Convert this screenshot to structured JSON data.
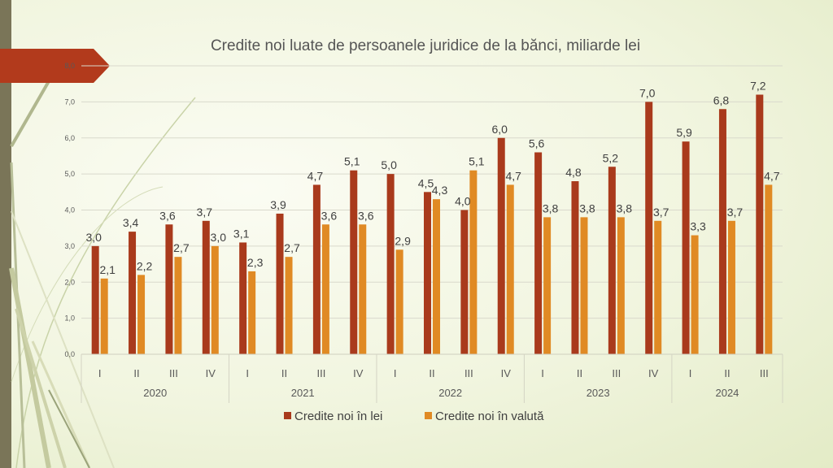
{
  "chart_data": {
    "type": "bar",
    "title": "Credite noi luate de persoanele juridice de la bănci, miliarde lei",
    "ylim": [
      0,
      8
    ],
    "yticks": [
      "0,0",
      "1,0",
      "2,0",
      "3,0",
      "4,0",
      "5,0",
      "6,0",
      "7,0",
      "8,0"
    ],
    "years": [
      "2020",
      "2021",
      "2022",
      "2023",
      "2024"
    ],
    "categories": [
      "I",
      "II",
      "III",
      "IV",
      "I",
      "II",
      "III",
      "IV",
      "I",
      "II",
      "III",
      "IV",
      "I",
      "II",
      "III",
      "IV",
      "I",
      "II",
      "III"
    ],
    "year_spans": [
      4,
      4,
      4,
      4,
      3
    ],
    "series": [
      {
        "name": "Credite noi în lei",
        "color": "#a93a1c",
        "values": [
          3.0,
          3.4,
          3.6,
          3.7,
          3.1,
          3.9,
          4.7,
          5.1,
          5.0,
          4.5,
          4.0,
          6.0,
          5.6,
          4.8,
          5.2,
          7.0,
          5.9,
          6.8,
          7.2
        ],
        "labels": [
          "3,0",
          "3,4",
          "3,6",
          "3,7",
          "3,1",
          "3,9",
          "4,7",
          "5,1",
          "5,0",
          "4,5",
          "4,0",
          "6,0",
          "5,6",
          "4,8",
          "5,2",
          "7,0",
          "5,9",
          "6,8",
          "7,2"
        ]
      },
      {
        "name": "Credite noi în valută",
        "color": "#e08a24",
        "values": [
          2.1,
          2.2,
          2.7,
          3.0,
          2.3,
          2.7,
          3.6,
          3.6,
          2.9,
          4.3,
          5.1,
          4.7,
          3.8,
          3.8,
          3.8,
          3.7,
          3.3,
          3.7,
          4.7
        ],
        "labels": [
          "2,1",
          "2,2",
          "2,7",
          "3,0",
          "2,3",
          "2,7",
          "3,6",
          "3,6",
          "2,9",
          "4,3",
          "5,1",
          "4,7",
          "3,8",
          "3,8",
          "3,8",
          "3,7",
          "3,3",
          "3,7",
          "4,7"
        ]
      }
    ],
    "grid": true,
    "legend_position": "bottom"
  }
}
